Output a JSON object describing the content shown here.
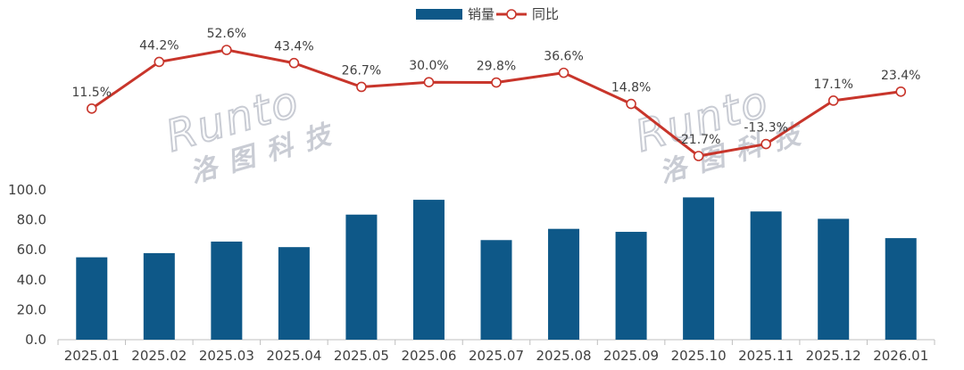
{
  "chart_data": {
    "type": "bar+line",
    "categories": [
      "2025.01",
      "2025.02",
      "2025.03",
      "2025.04",
      "2025.05",
      "2025.06",
      "2025.07",
      "2025.08",
      "2025.09",
      "2025.10",
      "2025.11",
      "2025.12",
      "2026.01"
    ],
    "series": [
      {
        "name": "销量",
        "type": "bar",
        "color": "#0e5888",
        "values": [
          55.0,
          57.8,
          65.5,
          61.8,
          83.5,
          93.4,
          66.5,
          74.0,
          72.0,
          95.0,
          85.6,
          80.7,
          67.8
        ]
      },
      {
        "name": "同比",
        "type": "line",
        "color": "#c8352b",
        "values": [
          11.5,
          44.2,
          52.6,
          43.4,
          26.7,
          30.0,
          29.8,
          36.6,
          14.8,
          -21.7,
          -13.3,
          17.1,
          23.4
        ],
        "labels": [
          "11.5%",
          "44.2%",
          "52.6%",
          "43.4%",
          "26.7%",
          "30.0%",
          "29.8%",
          "36.6%",
          "14.8%",
          "-21.7%",
          "-13.3%",
          "17.1%",
          "23.4%"
        ]
      }
    ],
    "y_axis": {
      "ylim": [
        0,
        100
      ],
      "ticks": [
        "0.0",
        "20.0",
        "40.0",
        "60.0",
        "80.0",
        "100.0"
      ]
    },
    "line_range": [
      -21.7,
      52.6
    ],
    "legend_position": "top-center",
    "grid": false,
    "watermark": {
      "text": "Runto",
      "subtext": "洛图科技",
      "color": "#c9ccd4"
    }
  }
}
